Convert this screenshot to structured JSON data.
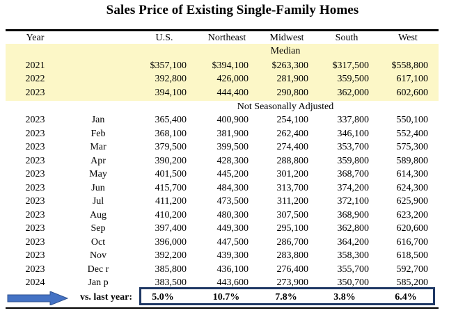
{
  "title": "Sales Price of Existing Single-Family Homes",
  "columns": {
    "year": "Year",
    "us": "U.S.",
    "northeast": "Northeast",
    "midwest": "Midwest",
    "south": "South",
    "west": "West"
  },
  "sections": {
    "median": "Median",
    "nsa": "Not Seasonally Adjusted"
  },
  "annual_rows": [
    {
      "year": "2021",
      "us": "$357,100",
      "ne": "$394,100",
      "mw": "$263,300",
      "so": "$317,500",
      "we": "$558,800"
    },
    {
      "year": "2022",
      "us": "392,800",
      "ne": "426,000",
      "mw": "281,900",
      "so": "359,500",
      "we": "617,100"
    },
    {
      "year": "2023",
      "us": "394,100",
      "ne": "444,400",
      "mw": "290,800",
      "so": "362,000",
      "we": "602,600"
    }
  ],
  "monthly_rows": [
    {
      "year": "2023",
      "month": "Jan",
      "us": "365,400",
      "ne": "400,900",
      "mw": "254,100",
      "so": "337,800",
      "we": "550,100"
    },
    {
      "year": "2023",
      "month": "Feb",
      "us": "368,100",
      "ne": "381,900",
      "mw": "262,400",
      "so": "346,100",
      "we": "552,400"
    },
    {
      "year": "2023",
      "month": "Mar",
      "us": "379,500",
      "ne": "399,500",
      "mw": "274,400",
      "so": "353,700",
      "we": "575,300"
    },
    {
      "year": "2023",
      "month": "Apr",
      "us": "390,200",
      "ne": "428,300",
      "mw": "288,800",
      "so": "359,800",
      "we": "589,800"
    },
    {
      "year": "2023",
      "month": "May",
      "us": "401,500",
      "ne": "445,200",
      "mw": "301,200",
      "so": "368,700",
      "we": "614,300"
    },
    {
      "year": "2023",
      "month": "Jun",
      "us": "415,700",
      "ne": "484,300",
      "mw": "313,700",
      "so": "374,200",
      "we": "624,300"
    },
    {
      "year": "2023",
      "month": "Jul",
      "us": "411,200",
      "ne": "473,500",
      "mw": "311,200",
      "so": "372,100",
      "we": "625,900"
    },
    {
      "year": "2023",
      "month": "Aug",
      "us": "410,200",
      "ne": "480,300",
      "mw": "307,500",
      "so": "368,900",
      "we": "623,200"
    },
    {
      "year": "2023",
      "month": "Sep",
      "us": "397,400",
      "ne": "449,300",
      "mw": "295,100",
      "so": "362,800",
      "we": "620,600"
    },
    {
      "year": "2023",
      "month": "Oct",
      "us": "396,000",
      "ne": "447,500",
      "mw": "286,700",
      "so": "364,200",
      "we": "616,700"
    },
    {
      "year": "2023",
      "month": "Nov",
      "us": "392,200",
      "ne": "439,300",
      "mw": "283,800",
      "so": "358,300",
      "we": "618,500"
    },
    {
      "year": "2023",
      "month": "Dec r",
      "us": "385,800",
      "ne": "436,100",
      "mw": "276,400",
      "so": "355,700",
      "we": "592,700"
    },
    {
      "year": "2024",
      "month": "Jan p",
      "us": "383,500",
      "ne": "443,600",
      "mw": "273,900",
      "so": "350,700",
      "we": "585,200"
    }
  ],
  "vs_last_year": {
    "label": "vs. last year:",
    "us": "5.0%",
    "ne": "10.7%",
    "mw": "7.8%",
    "so": "3.8%",
    "we": "6.4%"
  },
  "colors": {
    "highlight": "#fcf7c7",
    "box_border": "#1f3864",
    "arrow_fill": "#4472c4",
    "arrow_stroke": "#2f528f"
  }
}
